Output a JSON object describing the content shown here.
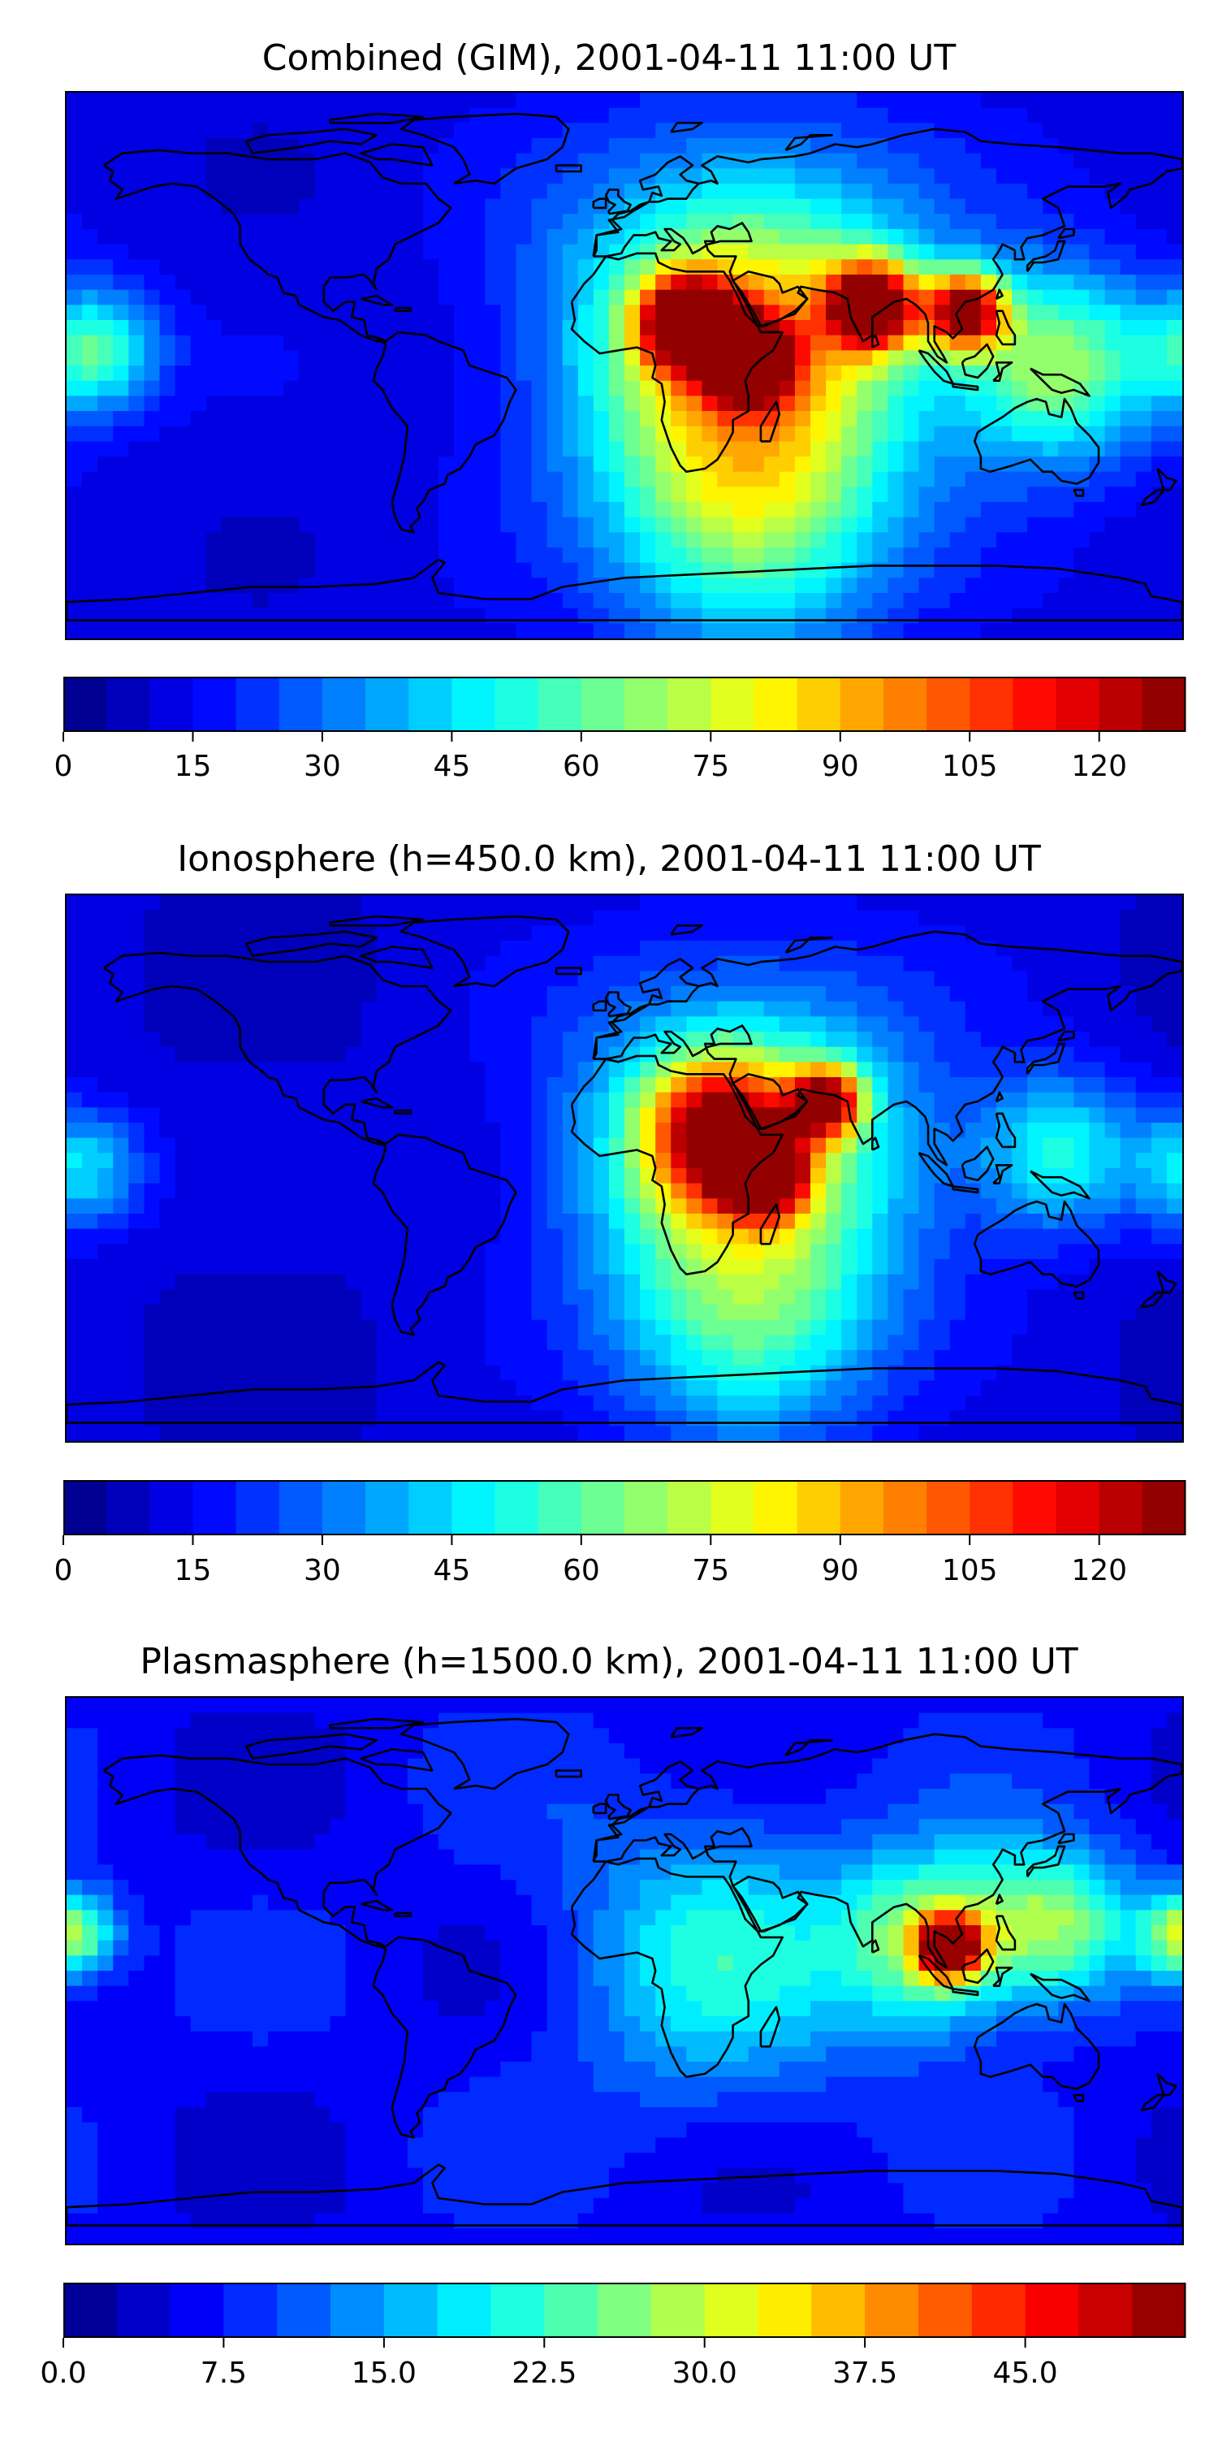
{
  "panels": [
    {
      "title": "Combined (GIM), 2001-04-11 11:00 UT",
      "colorbar": {
        "min": 0,
        "max": 127.5,
        "levels": 26,
        "tick_labels": [
          "0",
          "15",
          "30",
          "45",
          "60",
          "75",
          "90",
          "105",
          "120"
        ]
      },
      "field": [
        {
          "lon": 40,
          "lat": 2,
          "value": 108,
          "spread": 9
        },
        {
          "lon": 20,
          "lat": 14,
          "value": 104,
          "spread": 10
        },
        {
          "lon": 80,
          "lat": 20,
          "value": 106,
          "spread": 10
        },
        {
          "lon": 110,
          "lat": 18,
          "value": 100,
          "spread": 9
        },
        {
          "lon": 40,
          "lat": 8,
          "value": 80,
          "spread": 40
        },
        {
          "lon": 140,
          "lat": 0,
          "value": 55,
          "spread": 22
        },
        {
          "lon": -170,
          "lat": 5,
          "value": 45,
          "spread": 14
        },
        {
          "lon": 40,
          "lat": -55,
          "value": 40,
          "spread": 30
        }
      ],
      "base_value": 12
    },
    {
      "title": "Ionosphere  (h=450.0 km), 2001-04-11 11:00 UT",
      "colorbar": {
        "min": 0,
        "max": 127.5,
        "levels": 26,
        "tick_labels": [
          "0",
          "15",
          "30",
          "45",
          "60",
          "75",
          "90",
          "105",
          "120"
        ]
      },
      "field": [
        {
          "lon": 45,
          "lat": -2,
          "value": 92,
          "spread": 9
        },
        {
          "lon": 65,
          "lat": 22,
          "value": 90,
          "spread": 8
        },
        {
          "lon": 30,
          "lat": 12,
          "value": 78,
          "spread": 16
        },
        {
          "lon": 40,
          "lat": 5,
          "value": 60,
          "spread": 40
        },
        {
          "lon": 140,
          "lat": 5,
          "value": 40,
          "spread": 18
        },
        {
          "lon": -175,
          "lat": 0,
          "value": 35,
          "spread": 14
        },
        {
          "lon": 40,
          "lat": -55,
          "value": 35,
          "spread": 28
        }
      ],
      "base_value": 10
    },
    {
      "title": "Plasmasphere (h=1500.0 km), 2001-04-11 11:00 UT",
      "colorbar": {
        "min": 0,
        "max": 51,
        "levels": 21,
        "tick_labels": [
          "0.0",
          "7.5",
          "15.0",
          "22.5",
          "30.0",
          "37.5",
          "45.0"
        ]
      },
      "field": [
        {
          "lon": 105,
          "lat": 8,
          "value": 40,
          "spread": 7
        },
        {
          "lon": 100,
          "lat": 10,
          "value": 22,
          "spread": 20
        },
        {
          "lon": 140,
          "lat": 15,
          "value": 20,
          "spread": 18
        },
        {
          "lon": -178,
          "lat": 12,
          "value": 22,
          "spread": 10
        },
        {
          "lon": 30,
          "lat": 5,
          "value": 13,
          "spread": 35
        }
      ],
      "base_value": 6
    }
  ],
  "map_labels": {
    "axes": "none"
  }
}
